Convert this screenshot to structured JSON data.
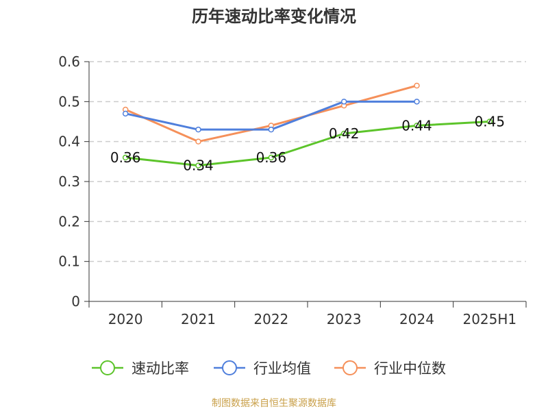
{
  "title": "历年速动比率变化情况",
  "source": "制图数据来自恒生聚源数据库",
  "chart_data": {
    "type": "line",
    "categories": [
      "2020",
      "2021",
      "2022",
      "2023",
      "2024",
      "2025H1"
    ],
    "y_ticks": [
      "0",
      "0.1",
      "0.2",
      "0.3",
      "0.4",
      "0.5",
      "0.6"
    ],
    "ylim": [
      0,
      0.6
    ],
    "grid": true,
    "legend_position": "bottom",
    "series": [
      {
        "name": "速动比率",
        "color": "#5cc42a",
        "values": [
          0.36,
          0.34,
          0.36,
          0.42,
          0.44,
          0.45
        ],
        "labels": [
          "0.36",
          "0.34",
          "0.36",
          "0.42",
          "0.44",
          "0.45"
        ]
      },
      {
        "name": "行业均值",
        "color": "#4f7fdc",
        "values": [
          0.47,
          0.43,
          0.43,
          0.5,
          0.5,
          null
        ]
      },
      {
        "name": "行业中位数",
        "color": "#f5905a",
        "values": [
          0.48,
          0.4,
          0.44,
          0.49,
          0.54,
          null
        ]
      }
    ]
  }
}
